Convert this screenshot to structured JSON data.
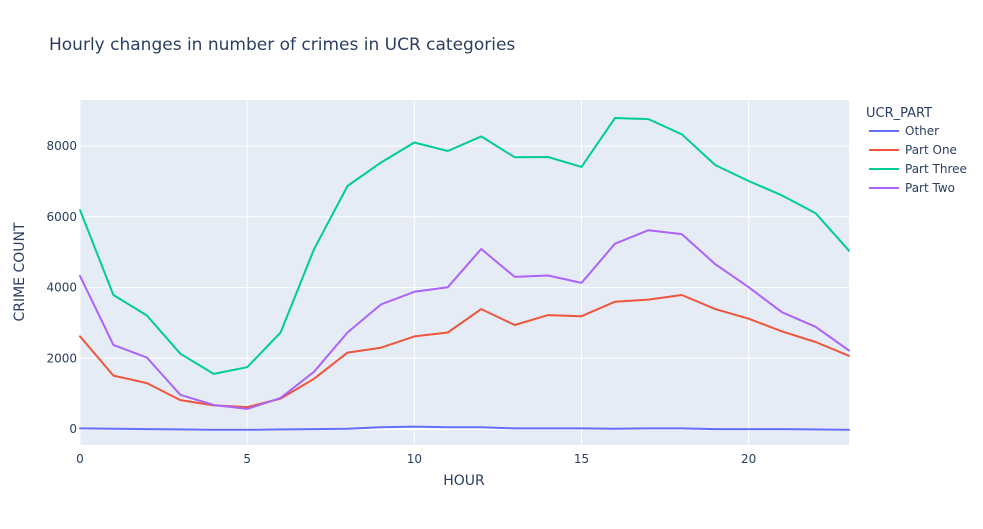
{
  "chart_data": {
    "type": "line",
    "title": "Hourly changes in number of crimes in UCR categories",
    "xlabel": "HOUR",
    "ylabel": "CRIME COUNT",
    "xlim": [
      0,
      23
    ],
    "ylim": [
      -450,
      9300
    ],
    "x_ticks": [
      0,
      5,
      10,
      15,
      20
    ],
    "y_ticks": [
      0,
      2000,
      4000,
      6000,
      8000
    ],
    "y_tick_labels": [
      "0",
      "2000",
      "4000",
      "6000",
      "8000"
    ],
    "grid": true,
    "legend_title": "UCR_PART",
    "legend_position": "right",
    "x": [
      0,
      1,
      2,
      3,
      4,
      5,
      6,
      7,
      8,
      9,
      10,
      11,
      12,
      13,
      14,
      15,
      16,
      17,
      18,
      19,
      20,
      21,
      22,
      23
    ],
    "series": [
      {
        "name": "Other",
        "color": "#636efa",
        "values": [
          20,
          10,
          0,
          -10,
          -20,
          -20,
          -10,
          0,
          10,
          50,
          70,
          50,
          50,
          20,
          20,
          20,
          10,
          20,
          20,
          0,
          0,
          0,
          -10,
          -20
        ]
      },
      {
        "name": "Part One",
        "color": "#ef553b",
        "values": [
          2620,
          1510,
          1300,
          820,
          670,
          620,
          860,
          1420,
          2160,
          2300,
          2620,
          2730,
          3390,
          2940,
          3220,
          3190,
          3600,
          3660,
          3790,
          3390,
          3120,
          2760,
          2460,
          2070
        ]
      },
      {
        "name": "Part Three",
        "color": "#00cc96",
        "values": [
          6190,
          3790,
          3210,
          2130,
          1560,
          1750,
          2730,
          5080,
          6870,
          7530,
          8100,
          7860,
          8270,
          7680,
          7690,
          7410,
          8790,
          8760,
          8330,
          7460,
          7010,
          6600,
          6100,
          5040
        ]
      },
      {
        "name": "Part Two",
        "color": "#ab63fa",
        "values": [
          4330,
          2380,
          2020,
          970,
          680,
          570,
          880,
          1620,
          2730,
          3520,
          3880,
          4010,
          5090,
          4300,
          4340,
          4130,
          5240,
          5620,
          5510,
          4660,
          4010,
          3300,
          2890,
          2220
        ]
      }
    ]
  }
}
